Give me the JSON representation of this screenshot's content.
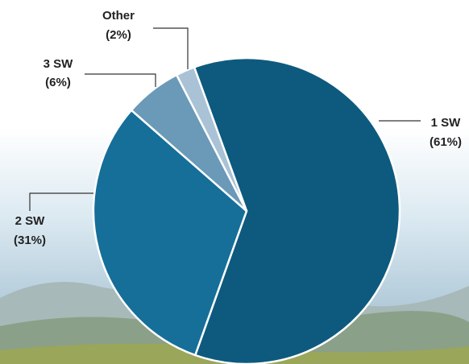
{
  "chart_data": {
    "type": "pie",
    "categories": [
      "1 SW",
      "2 SW",
      "3 SW",
      "Other"
    ],
    "values": [
      61,
      31,
      6,
      2
    ],
    "value_labels": [
      "(61%)",
      "(31%)",
      "(6%)",
      "(2%)"
    ],
    "colors": [
      "#0d5a7e",
      "#156f99",
      "#6b99b8",
      "#a9c2d6"
    ]
  }
}
